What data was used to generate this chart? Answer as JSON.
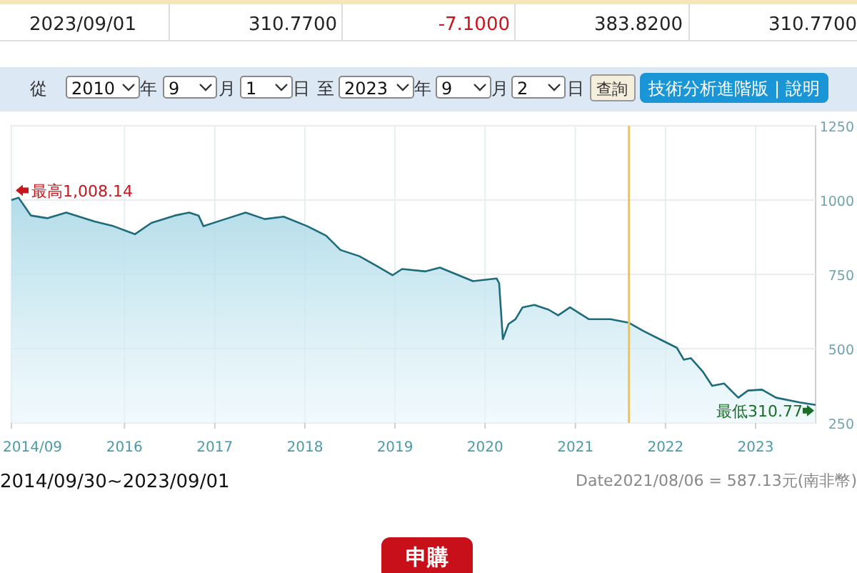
{
  "chart_data": {
    "type": "area",
    "series": [
      {
        "color": "#1e6b7b",
        "x": [
          "2014-09-30",
          "2014-10-29",
          "2014-12-18",
          "2015-02-22",
          "2015-05-10",
          "2015-09-02",
          "2015-11-18",
          "2016-02-12",
          "2016-04-19",
          "2016-07-23",
          "2016-09-19",
          "2016-10-27",
          "2016-11-16",
          "2017-02-01",
          "2017-05-06",
          "2017-07-22",
          "2017-10-07",
          "2018-01-11",
          "2018-03-28",
          "2018-05-25",
          "2018-08-10",
          "2018-10-26",
          "2018-12-22",
          "2019-01-30",
          "2019-05-05",
          "2019-07-02",
          "2019-11-13",
          "2020-02-17",
          "2020-02-27",
          "2020-03-13",
          "2020-04-05",
          "2020-05-03",
          "2020-06-01",
          "2020-07-19",
          "2020-09-15",
          "2020-10-23",
          "2020-12-10",
          "2021-02-25",
          "2021-05-23",
          "2021-08-06",
          "2021-10-04",
          "2021-12-20",
          "2022-02-16",
          "2022-03-16",
          "2022-04-14",
          "2022-06-01",
          "2022-07-09",
          "2022-08-26",
          "2022-10-23",
          "2022-12-01",
          "2023-01-27",
          "2023-03-25",
          "2023-06-29",
          "2023-09-01"
        ],
        "values": [
          1000,
          1008.14,
          948,
          939,
          958,
          928,
          912,
          885,
          923,
          948,
          958,
          948,
          912,
          933,
          958,
          936,
          944,
          912,
          880,
          832,
          811,
          775,
          747,
          768,
          760,
          773,
          727,
          736,
          720,
          532,
          583,
          599,
          639,
          647,
          631,
          612,
          639,
          599,
          599,
          587.13,
          559,
          527,
          503,
          463,
          468,
          423,
          375,
          383,
          335,
          359,
          362,
          335,
          319,
          310.77
        ]
      }
    ],
    "xlim": [
      "2014-09-30",
      "2023-09-01"
    ],
    "xticks": [
      {
        "value": "2014-09-30",
        "label": "2014/09"
      },
      {
        "value": "2016",
        "label": "2016"
      },
      {
        "value": "2017",
        "label": "2017"
      },
      {
        "value": "2018",
        "label": "2018"
      },
      {
        "value": "2019",
        "label": "2019"
      },
      {
        "value": "2020",
        "label": "2020"
      },
      {
        "value": "2021",
        "label": "2021"
      },
      {
        "value": "2022",
        "label": "2022"
      },
      {
        "value": "2023",
        "label": "2023"
      }
    ],
    "ylim": [
      250,
      1250
    ],
    "yticks": [
      250,
      500,
      750,
      1000,
      1250
    ],
    "grid": true,
    "ref_lines": [
      {
        "axis": "x",
        "value": "2021-08-06",
        "color": "#f2c44a"
      }
    ],
    "annotations": [
      {
        "text": "最高1,008.14",
        "x": "2014-10-29",
        "y": 1008.14
      },
      {
        "text": "最低310.77",
        "x": "2023-09-01",
        "y": 310.77
      },
      "2014/09/30~2023/09/01",
      "2023/09/01",
      "310.7700",
      "-7.1000",
      "383.8200",
      "310.7700",
      "從",
      "2010",
      "年",
      "9",
      "月",
      "1",
      "日",
      "至",
      "2023",
      "年",
      "9",
      "月",
      "2",
      "日",
      "查詢",
      "技術分析進階版 | 說明",
      "申購",
      "Date2021/08/06 =  587.13元(南非幣)"
    ]
  }
}
